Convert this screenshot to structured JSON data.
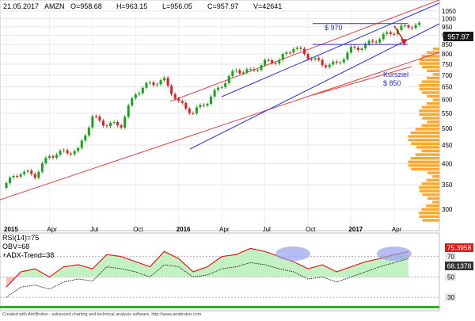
{
  "header": {
    "date": "21.05.2017",
    "symbol": "AMZN",
    "open": "O=958.68",
    "high": "H=963.15",
    "low": "L=956.05",
    "close": "C=957.97",
    "volume": "V=42641"
  },
  "annotations": {
    "resistance_label": "$ 970",
    "target_label_line1": "Kursziel",
    "target_label_line2": "$ 850"
  },
  "indicator_panel": {
    "rsi_label": "RSI(14)=75",
    "obv_label": "OBV=68",
    "adx_label": "+ADX-Trend=38",
    "badge_rsi": "75.3958",
    "badge_obv": "68.1378"
  },
  "footer": {
    "credit": "Created with AmiBroker - advanced charting and technical analysis software. http://www.amibroker.com"
  },
  "colors": {
    "candle_up": "#1aa31a",
    "candle_down": "#e21b1b",
    "channel_red": "#e84040",
    "channel_blue": "#2a2ad8",
    "volume_profile": "#ff9e1a",
    "rsi_line": "#e21b1b",
    "obv_line": "#222222",
    "rsi_fill_up": "#b7f0b7",
    "rsi_fill_down": "#f7b0b0",
    "highlight_ellipse": "#9aa0f0",
    "price_badge": "#1a1a1a",
    "badge_red": "#e21b1b",
    "badge_dark": "#333333"
  },
  "chart_data": [
    {
      "type": "candlestick",
      "title": "",
      "x_tick_labels": [
        "2015",
        "Apr",
        "Jul",
        "Oct",
        "2016",
        "Apr",
        "Jul",
        "Oct",
        "2017",
        "Apr"
      ],
      "y_tick_labels": [
        300,
        350,
        400,
        450,
        500,
        550,
        600,
        650,
        700,
        750,
        800,
        850,
        900,
        950,
        1000,
        1050
      ],
      "ylim": [
        270,
        1060
      ],
      "y_scale": "log",
      "last_price": "957.97",
      "horizontal_levels": [
        {
          "label": "$ 970",
          "value": 970
        },
        {
          "label": "$ 850",
          "value": 850
        }
      ],
      "monthly_closes": [
        {
          "month": "2015-01",
          "close": 354
        },
        {
          "month": "2015-02",
          "close": 380
        },
        {
          "month": "2015-03",
          "close": 372
        },
        {
          "month": "2015-04",
          "close": 421
        },
        {
          "month": "2015-05",
          "close": 430
        },
        {
          "month": "2015-06",
          "close": 434
        },
        {
          "month": "2015-07",
          "close": 536
        },
        {
          "month": "2015-08",
          "close": 512
        },
        {
          "month": "2015-09",
          "close": 512
        },
        {
          "month": "2015-10",
          "close": 626
        },
        {
          "month": "2015-11",
          "close": 664
        },
        {
          "month": "2015-12",
          "close": 676
        },
        {
          "month": "2016-01",
          "close": 587
        },
        {
          "month": "2016-02",
          "close": 552
        },
        {
          "month": "2016-03",
          "close": 594
        },
        {
          "month": "2016-04",
          "close": 659
        },
        {
          "month": "2016-05",
          "close": 722
        },
        {
          "month": "2016-06",
          "close": 716
        },
        {
          "month": "2016-07",
          "close": 758
        },
        {
          "month": "2016-08",
          "close": 769
        },
        {
          "month": "2016-09",
          "close": 837
        },
        {
          "month": "2016-10",
          "close": 789
        },
        {
          "month": "2016-11",
          "close": 750
        },
        {
          "month": "2016-12",
          "close": 750
        },
        {
          "month": "2017-01",
          "close": 823
        },
        {
          "month": "2017-02",
          "close": 845
        },
        {
          "month": "2017-03",
          "close": 886
        },
        {
          "month": "2017-04",
          "close": 924
        },
        {
          "month": "2017-05",
          "close": 958
        }
      ]
    },
    {
      "type": "line",
      "title": "",
      "y_tick_labels": [
        30,
        50,
        70
      ],
      "ylim": [
        20,
        90
      ],
      "series": [
        {
          "name": "RSI(14)",
          "values": [
            40,
            55,
            58,
            50,
            60,
            62,
            58,
            72,
            70,
            65,
            60,
            75,
            68,
            55,
            60,
            70,
            72,
            78,
            75,
            70,
            65,
            58,
            62,
            55,
            60,
            65,
            68,
            72,
            75
          ]
        },
        {
          "name": "OBV",
          "values": [
            30,
            40,
            42,
            38,
            45,
            48,
            46,
            60,
            58,
            55,
            50,
            62,
            60,
            50,
            52,
            58,
            60,
            64,
            62,
            58,
            55,
            48,
            50,
            45,
            50,
            55,
            60,
            64,
            68
          ]
        }
      ]
    }
  ]
}
